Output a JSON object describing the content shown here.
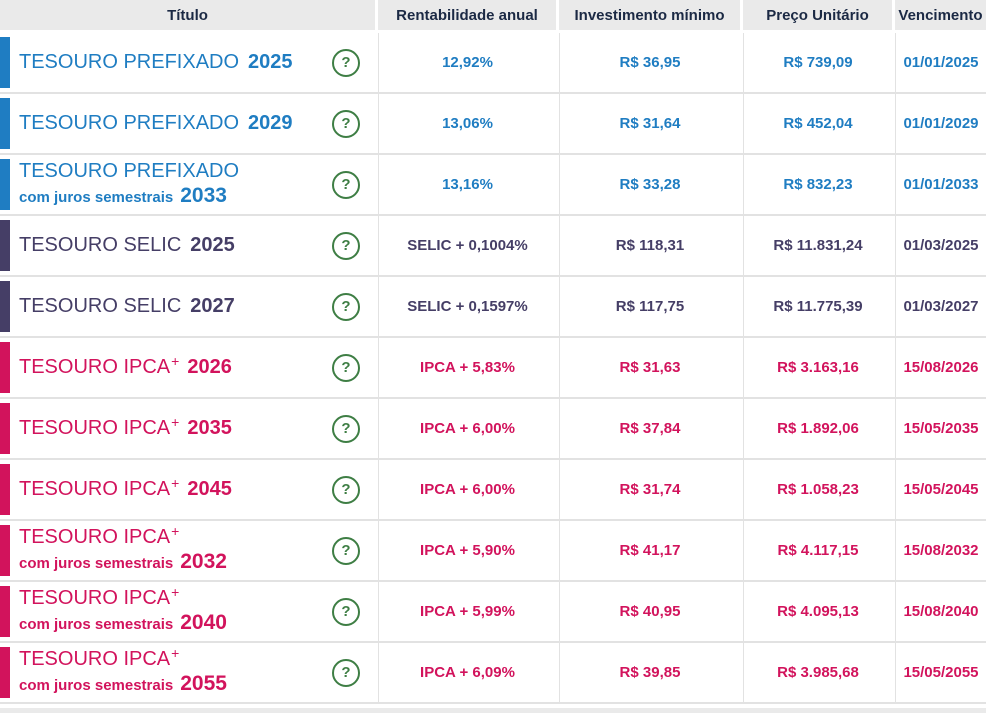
{
  "header": {
    "columns": [
      "Título",
      "Rentabilidade anual",
      "Investimento mínimo",
      "Preço Unitário",
      "Vencimento"
    ]
  },
  "icons": {
    "help_glyph": "?",
    "help_meaning": "help-tooltip-icon"
  },
  "colors": {
    "prefixado": "#1f7dc2",
    "selic": "#453e66",
    "ipca": "#d2135c",
    "help_green": "#3e7e44",
    "header_bg": "#eaeaea",
    "header_text": "#1b2944",
    "grid_line": "#e2e2e2"
  },
  "rows": [
    {
      "group": "prefixado",
      "line1": "TESOURO PREFIXADO",
      "line1_sup": "",
      "line1_year": "2025",
      "line2": "",
      "line2_year": "",
      "rate": "12,92%",
      "min": "R$ 36,95",
      "price": "R$ 739,09",
      "due": "01/01/2025"
    },
    {
      "group": "prefixado",
      "line1": "TESOURO PREFIXADO",
      "line1_sup": "",
      "line1_year": "2029",
      "line2": "",
      "line2_year": "",
      "rate": "13,06%",
      "min": "R$ 31,64",
      "price": "R$ 452,04",
      "due": "01/01/2029"
    },
    {
      "group": "prefixado",
      "line1": "TESOURO PREFIXADO",
      "line1_sup": "",
      "line1_year": "",
      "line2": "com juros semestrais",
      "line2_year": "2033",
      "rate": "13,16%",
      "min": "R$ 33,28",
      "price": "R$ 832,23",
      "due": "01/01/2033"
    },
    {
      "group": "selic",
      "line1": "TESOURO SELIC",
      "line1_sup": "",
      "line1_year": "2025",
      "line2": "",
      "line2_year": "",
      "rate": "SELIC + 0,1004%",
      "min": "R$ 118,31",
      "price": "R$ 11.831,24",
      "due": "01/03/2025"
    },
    {
      "group": "selic",
      "line1": "TESOURO SELIC",
      "line1_sup": "",
      "line1_year": "2027",
      "line2": "",
      "line2_year": "",
      "rate": "SELIC + 0,1597%",
      "min": "R$ 117,75",
      "price": "R$ 11.775,39",
      "due": "01/03/2027"
    },
    {
      "group": "ipca",
      "line1": "TESOURO IPCA",
      "line1_sup": "+",
      "line1_year": "2026",
      "line2": "",
      "line2_year": "",
      "rate": "IPCA + 5,83%",
      "min": "R$ 31,63",
      "price": "R$ 3.163,16",
      "due": "15/08/2026"
    },
    {
      "group": "ipca",
      "line1": "TESOURO IPCA",
      "line1_sup": "+",
      "line1_year": "2035",
      "line2": "",
      "line2_year": "",
      "rate": "IPCA + 6,00%",
      "min": "R$ 37,84",
      "price": "R$ 1.892,06",
      "due": "15/05/2035"
    },
    {
      "group": "ipca",
      "line1": "TESOURO IPCA",
      "line1_sup": "+",
      "line1_year": "2045",
      "line2": "",
      "line2_year": "",
      "rate": "IPCA + 6,00%",
      "min": "R$ 31,74",
      "price": "R$ 1.058,23",
      "due": "15/05/2045"
    },
    {
      "group": "ipca",
      "line1": "TESOURO IPCA",
      "line1_sup": "+",
      "line1_year": "",
      "line2": "com juros semestrais",
      "line2_year": "2032",
      "rate": "IPCA + 5,90%",
      "min": "R$ 41,17",
      "price": "R$ 4.117,15",
      "due": "15/08/2032"
    },
    {
      "group": "ipca",
      "line1": "TESOURO IPCA",
      "line1_sup": "+",
      "line1_year": "",
      "line2": "com juros semestrais",
      "line2_year": "2040",
      "rate": "IPCA + 5,99%",
      "min": "R$ 40,95",
      "price": "R$ 4.095,13",
      "due": "15/08/2040"
    },
    {
      "group": "ipca",
      "line1": "TESOURO IPCA",
      "line1_sup": "+",
      "line1_year": "",
      "line2": "com juros semestrais",
      "line2_year": "2055",
      "rate": "IPCA + 6,09%",
      "min": "R$ 39,85",
      "price": "R$ 3.985,68",
      "due": "15/05/2055"
    }
  ]
}
